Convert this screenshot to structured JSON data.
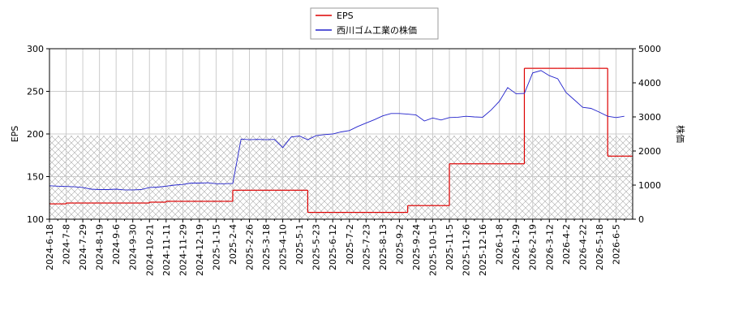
{
  "chart_data": {
    "type": "line",
    "categories": [
      "2024-6-18",
      null,
      "2024-7-8",
      null,
      "2024-7-29",
      null,
      "2024-8-19",
      null,
      "2024-9-6",
      null,
      "2024-9-30",
      null,
      "2024-10-21",
      null,
      "2024-11-11",
      null,
      "2024-11-29",
      null,
      "2024-12-19",
      null,
      "2025-1-15",
      null,
      "2025-2-4",
      null,
      "2025-2-26",
      null,
      "2025-3-18",
      null,
      "2025-4-10",
      null,
      "2025-5-1",
      null,
      "2025-5-23",
      null,
      "2025-6-12",
      null,
      "2025-7-2",
      null,
      "2025-7-23",
      null,
      "2025-8-13",
      null,
      "2025-9-2",
      null,
      "2025-9-24",
      null,
      "2025-10-15",
      null,
      "2025-11-5",
      null,
      "2025-11-26",
      null,
      "2025-12-16",
      null,
      "2026-1-8",
      null,
      "2026-1-29",
      null,
      "2026-2-19",
      null,
      "2026-3-12",
      null,
      "2026-4-2",
      null,
      "2026-4-22",
      null,
      "2026-5-18",
      null,
      "2026-6-5",
      null
    ],
    "series": [
      {
        "name": "EPS",
        "color": "#dd0000",
        "step": true,
        "values": [
          118,
          118,
          119,
          119,
          119,
          119,
          119,
          119,
          119,
          119,
          119,
          119,
          120,
          120,
          121,
          121,
          121,
          121,
          121,
          121,
          121,
          121,
          134,
          134,
          134,
          134,
          134,
          134,
          134,
          134,
          134,
          108,
          108,
          108,
          108,
          108,
          108,
          108,
          108,
          108,
          108,
          108,
          108,
          116,
          116,
          116,
          116,
          116,
          165,
          165,
          165,
          165,
          165,
          165,
          165,
          165,
          165,
          277,
          277,
          277,
          277,
          277,
          277,
          277,
          277,
          277,
          277,
          174,
          174,
          174
        ]
      },
      {
        "name": "西川ゴム工業の株価",
        "color": "#2222cc",
        "axis": "y2",
        "values": [
          980,
          970,
          960,
          950,
          930,
          880,
          870,
          870,
          880,
          860,
          860,
          870,
          930,
          940,
          970,
          1000,
          1020,
          1060,
          1060,
          1070,
          1040,
          1040,
          1050,
          2350,
          2330,
          2340,
          2330,
          2340,
          2100,
          2410,
          2440,
          2330,
          2450,
          2480,
          2500,
          2560,
          2600,
          2720,
          2820,
          2920,
          3030,
          3100,
          3100,
          3080,
          3060,
          2880,
          2970,
          2910,
          2980,
          2990,
          3020,
          3000,
          2990,
          3200,
          3460,
          3860,
          3680,
          3690,
          4290,
          4360,
          4210,
          4120,
          3720,
          3500,
          3280,
          3250,
          3140,
          3020,
          2980,
          3020
        ]
      }
    ],
    "ylabel": "EPS",
    "y2label": "株価",
    "ylim": [
      100,
      300
    ],
    "yticks": [
      100,
      150,
      200,
      250,
      300
    ],
    "y2lim": [
      0,
      5000
    ],
    "y2ticks": [
      0,
      1000,
      2000,
      3000,
      4000,
      5000
    ],
    "shaded_below": {
      "axis": "y2",
      "value": 2450
    },
    "grid": true,
    "legend": "top"
  }
}
